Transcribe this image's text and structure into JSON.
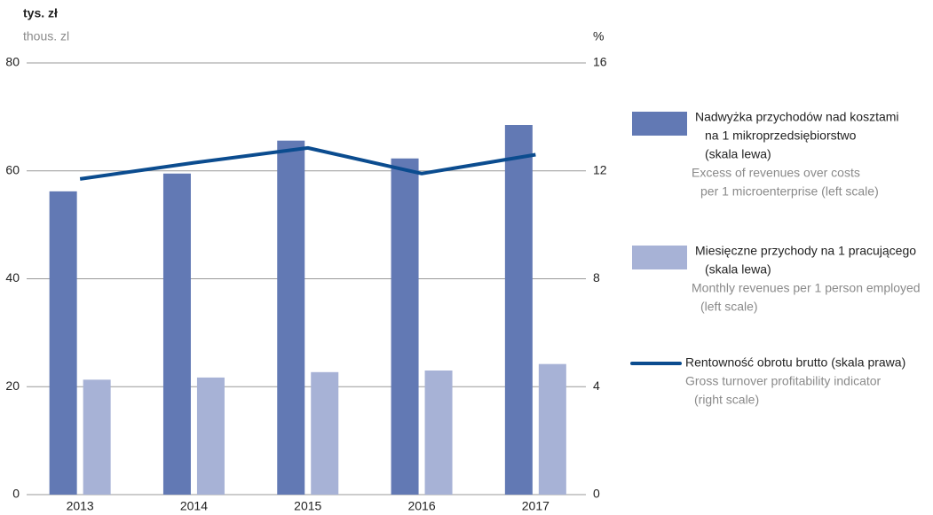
{
  "chart_data": {
    "type": "bar",
    "y_unit_label": "tys. zł",
    "y_unit_label_en": "thous. zl",
    "y2_unit_label": "%",
    "categories": [
      "2013",
      "2014",
      "2015",
      "2016",
      "2017"
    ],
    "series": [
      {
        "name_lines": [
          "Nadwyżka przychodów nad kosztami",
          "na 1 mikroprzedsiębiorstwo",
          "(skala lewa)"
        ],
        "description_lines": [
          "Excess of revenues over costs",
          "per 1 microenterprise (left scale)"
        ],
        "type": "bar",
        "color": "#6279b4",
        "values": [
          56.2,
          59.5,
          65.6,
          62.3,
          68.5
        ]
      },
      {
        "name_lines": [
          "Miesięczne przychody na 1 pracującego",
          "(skala lewa)"
        ],
        "description_lines": [
          "Monthly revenues per 1 person employed",
          "(left scale)"
        ],
        "type": "bar",
        "color": "#a7b2d6",
        "values": [
          21.3,
          21.7,
          22.7,
          23.0,
          24.2
        ]
      },
      {
        "name_lines": [
          "Rentowność obrotu brutto (skala prawa)"
        ],
        "description_lines": [
          "Gross turnover profitability indicator",
          "(right scale)"
        ],
        "type": "line",
        "axis": "y2",
        "color": "#0b4c8f",
        "values": [
          11.7,
          12.3,
          12.85,
          11.9,
          12.6
        ]
      }
    ],
    "ylim": [
      0,
      80
    ],
    "yticks": [
      0,
      20,
      40,
      60,
      80
    ],
    "y2lim": [
      0,
      16
    ],
    "y2ticks": [
      0,
      4,
      8,
      12,
      16
    ],
    "grid": true,
    "legend": "right"
  }
}
